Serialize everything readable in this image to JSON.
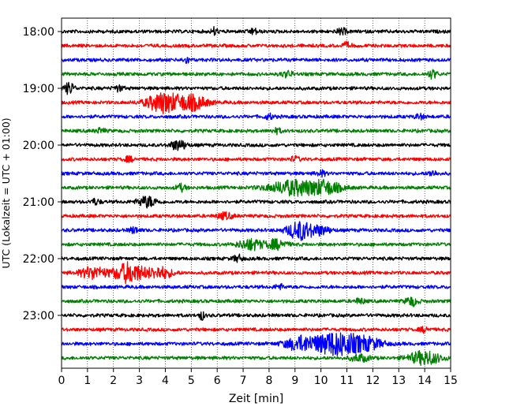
{
  "chart_data": {
    "type": "line",
    "title": "",
    "xlabel": "Zeit  [min]",
    "ylabel": "UTC (Lokalzeit = UTC + 01:00)",
    "xlim": [
      0,
      15
    ],
    "x_ticks": [
      0,
      1,
      2,
      3,
      4,
      5,
      6,
      7,
      8,
      9,
      10,
      11,
      12,
      13,
      14,
      15
    ],
    "y_tick_labels": [
      "18:00",
      "19:00",
      "20:00",
      "21:00",
      "22:00",
      "23:00"
    ],
    "grid": "vertical dotted lines at each minute",
    "legend": "none",
    "colors": [
      "#000000",
      "#ff0000",
      "#0000ff",
      "#008000"
    ],
    "traces": [
      {
        "start": "18:00",
        "color": "#000000",
        "events": [
          {
            "t": 5.9,
            "amp": 1.2,
            "dur": 0.2
          },
          {
            "t": 7.4,
            "amp": 0.8,
            "dur": 0.3
          },
          {
            "t": 10.8,
            "amp": 0.9,
            "dur": 0.3
          }
        ]
      },
      {
        "start": "18:15",
        "color": "#ff0000",
        "events": [
          {
            "t": 11.0,
            "amp": 0.8,
            "dur": 0.3
          }
        ]
      },
      {
        "start": "18:30",
        "color": "#0000ff",
        "events": [
          {
            "t": 4.8,
            "amp": 1.0,
            "dur": 0.2
          }
        ]
      },
      {
        "start": "18:45",
        "color": "#008000",
        "events": [
          {
            "t": 8.7,
            "amp": 0.8,
            "dur": 0.4
          },
          {
            "t": 14.3,
            "amp": 1.2,
            "dur": 0.3
          }
        ]
      },
      {
        "start": "19:00",
        "color": "#000000",
        "events": [
          {
            "t": 0.3,
            "amp": 1.8,
            "dur": 0.3
          },
          {
            "t": 2.2,
            "amp": 0.8,
            "dur": 0.3
          }
        ]
      },
      {
        "start": "19:15",
        "color": "#ff0000",
        "events": [
          {
            "t": 3.9,
            "amp": 3.0,
            "dur": 1.0
          },
          {
            "t": 5.0,
            "amp": 2.2,
            "dur": 1.0
          }
        ]
      },
      {
        "start": "19:30",
        "color": "#0000ff",
        "events": [
          {
            "t": 8.0,
            "amp": 0.7,
            "dur": 0.3
          },
          {
            "t": 13.8,
            "amp": 0.7,
            "dur": 0.3
          }
        ]
      },
      {
        "start": "19:45",
        "color": "#008000",
        "events": [
          {
            "t": 1.5,
            "amp": 0.7,
            "dur": 0.3
          },
          {
            "t": 8.3,
            "amp": 0.7,
            "dur": 0.3
          }
        ]
      },
      {
        "start": "20:00",
        "color": "#000000",
        "events": [
          {
            "t": 4.5,
            "amp": 1.5,
            "dur": 0.5
          }
        ]
      },
      {
        "start": "20:15",
        "color": "#ff0000",
        "events": [
          {
            "t": 2.6,
            "amp": 0.7,
            "dur": 0.3
          },
          {
            "t": 9.0,
            "amp": 0.7,
            "dur": 0.3
          }
        ]
      },
      {
        "start": "20:30",
        "color": "#0000ff",
        "events": [
          {
            "t": 10.0,
            "amp": 0.8,
            "dur": 0.3
          },
          {
            "t": 14.3,
            "amp": 0.8,
            "dur": 0.3
          }
        ]
      },
      {
        "start": "20:45",
        "color": "#008000",
        "events": [
          {
            "t": 4.6,
            "amp": 1.0,
            "dur": 0.3
          },
          {
            "t": 9.0,
            "amp": 2.2,
            "dur": 1.6
          },
          {
            "t": 10.2,
            "amp": 1.6,
            "dur": 1.0
          }
        ]
      },
      {
        "start": "21:00",
        "color": "#000000",
        "events": [
          {
            "t": 3.3,
            "amp": 1.6,
            "dur": 0.6
          },
          {
            "t": 1.3,
            "amp": 0.8,
            "dur": 0.3
          }
        ]
      },
      {
        "start": "21:15",
        "color": "#ff0000",
        "events": [
          {
            "t": 6.3,
            "amp": 0.9,
            "dur": 0.5
          }
        ]
      },
      {
        "start": "21:30",
        "color": "#0000ff",
        "events": [
          {
            "t": 2.8,
            "amp": 0.9,
            "dur": 0.3
          },
          {
            "t": 9.2,
            "amp": 2.8,
            "dur": 0.8
          },
          {
            "t": 10.0,
            "amp": 1.2,
            "dur": 0.6
          }
        ]
      },
      {
        "start": "21:45",
        "color": "#008000",
        "events": [
          {
            "t": 7.3,
            "amp": 1.6,
            "dur": 0.8
          },
          {
            "t": 8.3,
            "amp": 1.4,
            "dur": 0.6
          }
        ]
      },
      {
        "start": "22:00",
        "color": "#000000",
        "events": [
          {
            "t": 6.8,
            "amp": 1.0,
            "dur": 0.3
          }
        ]
      },
      {
        "start": "22:15",
        "color": "#ff0000",
        "events": [
          {
            "t": 1.2,
            "amp": 1.8,
            "dur": 0.8
          },
          {
            "t": 2.6,
            "amp": 3.0,
            "dur": 1.0
          },
          {
            "t": 3.8,
            "amp": 1.6,
            "dur": 0.8
          }
        ]
      },
      {
        "start": "22:30",
        "color": "#0000ff",
        "events": [
          {
            "t": 8.4,
            "amp": 0.7,
            "dur": 0.3
          }
        ]
      },
      {
        "start": "22:45",
        "color": "#008000",
        "events": [
          {
            "t": 13.5,
            "amp": 1.3,
            "dur": 0.4
          },
          {
            "t": 11.5,
            "amp": 0.8,
            "dur": 0.3
          }
        ]
      },
      {
        "start": "23:00",
        "color": "#000000",
        "events": [
          {
            "t": 5.4,
            "amp": 1.2,
            "dur": 0.2
          }
        ]
      },
      {
        "start": "23:15",
        "color": "#ff0000",
        "events": [
          {
            "t": 14.0,
            "amp": 0.7,
            "dur": 0.3
          }
        ]
      },
      {
        "start": "23:30",
        "color": "#0000ff",
        "events": [
          {
            "t": 9.2,
            "amp": 2.0,
            "dur": 1.0
          },
          {
            "t": 10.6,
            "amp": 3.6,
            "dur": 1.4
          },
          {
            "t": 11.8,
            "amp": 1.6,
            "dur": 1.0
          }
        ]
      },
      {
        "start": "23:45",
        "color": "#008000",
        "events": [
          {
            "t": 11.5,
            "amp": 1.0,
            "dur": 0.6
          },
          {
            "t": 14.0,
            "amp": 2.0,
            "dur": 1.0
          }
        ]
      }
    ]
  }
}
